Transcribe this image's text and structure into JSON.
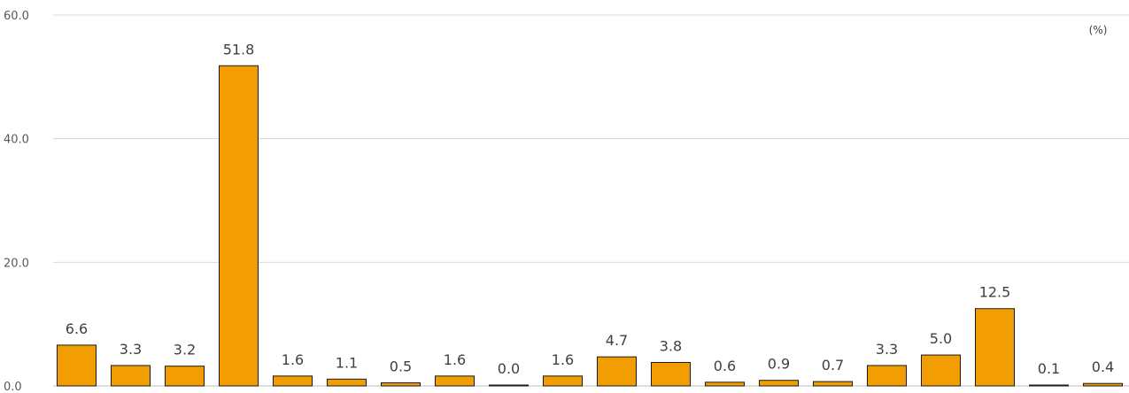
{
  "chart_data": {
    "type": "bar",
    "categories": [
      "",
      "",
      "",
      "",
      "",
      "",
      "",
      "",
      "",
      "",
      "",
      "",
      "",
      "",
      "",
      "",
      "",
      "",
      "",
      ""
    ],
    "values": [
      6.6,
      3.3,
      3.2,
      51.8,
      1.6,
      1.1,
      0.5,
      1.6,
      0.0,
      1.6,
      4.7,
      3.8,
      0.6,
      0.9,
      0.7,
      3.3,
      5.0,
      12.5,
      0.1,
      0.4
    ],
    "value_labels": [
      "6.6",
      "3.3",
      "3.2",
      "51.8",
      "1.6",
      "1.1",
      "0.5",
      "1.6",
      "0.0",
      "1.6",
      "4.7",
      "3.8",
      "0.6",
      "0.9",
      "0.7",
      "3.3",
      "5.0",
      "12.5",
      "0.1",
      "0.4"
    ],
    "ylim": [
      0,
      60
    ],
    "y_ticks": [
      "0.0",
      "20.0",
      "40.0",
      "60.0"
    ],
    "unit": "(%)",
    "grid": true,
    "bar_color": "#F29E02",
    "bar_edge_color": "#1a1a1a",
    "title": "",
    "xlabel": "",
    "ylabel": ""
  }
}
